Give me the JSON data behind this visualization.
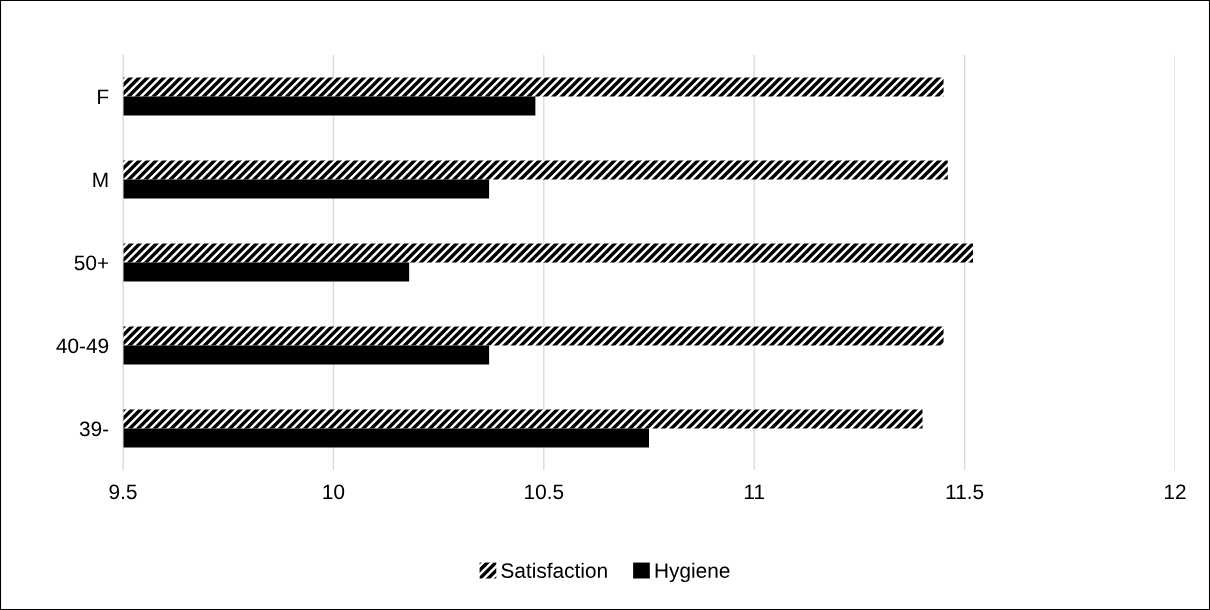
{
  "chart_data": {
    "type": "bar",
    "orientation": "horizontal",
    "categories": [
      "F",
      "M",
      "50+",
      "40-49",
      "39-"
    ],
    "series": [
      {
        "name": "Satisfaction",
        "color": "#000000",
        "values": [
          11.45,
          11.46,
          11.52,
          11.45,
          11.4
        ]
      },
      {
        "name": "Hygiene",
        "color": "#000000",
        "values": [
          10.48,
          10.37,
          10.18,
          10.37,
          10.75
        ]
      }
    ],
    "xlim": [
      9.5,
      12
    ],
    "xticks": [
      9.5,
      10,
      10.5,
      11,
      11.5,
      12
    ],
    "grid": "x",
    "legend": "bottom"
  }
}
